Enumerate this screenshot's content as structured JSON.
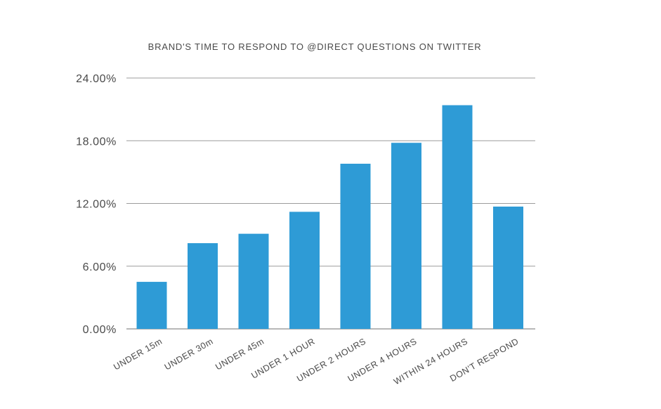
{
  "chart_data": {
    "type": "bar",
    "title": "BRAND'S TIME TO RESPOND TO @DIRECT QUESTIONS ON TWITTER",
    "xlabel": "",
    "ylabel": "",
    "categories": [
      "UNDER 15m",
      "UNDER 30m",
      "UNDER 45m",
      "UNDER 1 HOUR",
      "UNDER 2 HOURS",
      "UNDER 4 HOURS",
      "WITHIN 24 HOURS",
      "DON'T RESPOND"
    ],
    "values": [
      4.5,
      8.2,
      9.1,
      11.2,
      15.8,
      17.8,
      21.4,
      11.7
    ],
    "ylim": [
      0,
      24
    ],
    "yticks": [
      0,
      6,
      12,
      18,
      24
    ],
    "ytick_labels": [
      "0.00%",
      "6.00%",
      "12.00%",
      "18.00%",
      "24.00%"
    ],
    "grid": true,
    "legend": "none",
    "bar_color": "#2e9bd6"
  }
}
